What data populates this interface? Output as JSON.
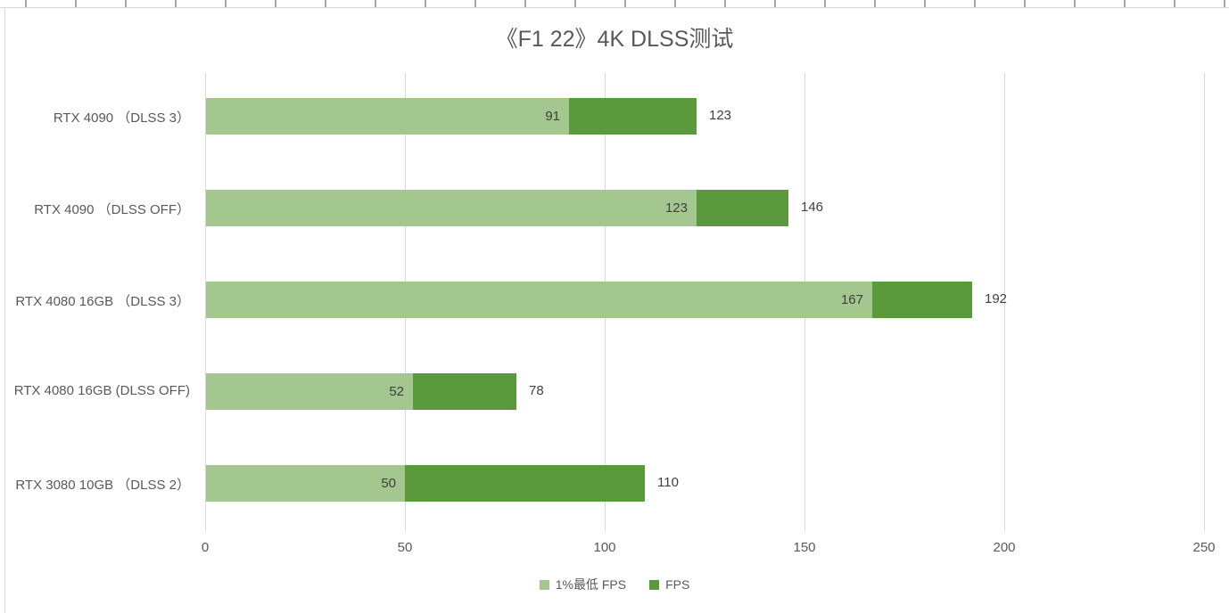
{
  "chart_data": {
    "type": "bar",
    "orientation": "horizontal",
    "stacked": true,
    "title": "《F1 22》4K DLSS测试",
    "categories": [
      "RTX 4090 （DLSS 3）",
      "RTX 4090 （DLSS OFF）",
      "RTX 4080 16GB （DLSS 3）",
      "RTX 4080 16GB (DLSS OFF)",
      "RTX 3080 10GB （DLSS 2）"
    ],
    "series": [
      {
        "name": "1%最低 FPS",
        "color": "#a3c78e",
        "values": [
          91,
          123,
          167,
          52,
          50
        ]
      },
      {
        "name": "FPS",
        "color": "#5a9a3c",
        "values": [
          123,
          146,
          192,
          78,
          110
        ]
      }
    ],
    "value_labels": {
      "inside_bar": [
        91,
        123,
        167,
        52,
        50
      ],
      "end_of_bar": [
        123,
        146,
        192,
        78,
        110
      ]
    },
    "x_axis": {
      "min": 0,
      "max": 250,
      "ticks": [
        0,
        50,
        100,
        150,
        200,
        250
      ]
    },
    "grid": "vertical-only",
    "legend_position": "bottom-center",
    "colors": {
      "low_fps_bar": "#a3c78e",
      "fps_bar": "#5a9a3c",
      "gridline": "#d9d9d9",
      "title_text": "#595959",
      "axis_text": "#595959",
      "value_text": "#404040"
    }
  }
}
